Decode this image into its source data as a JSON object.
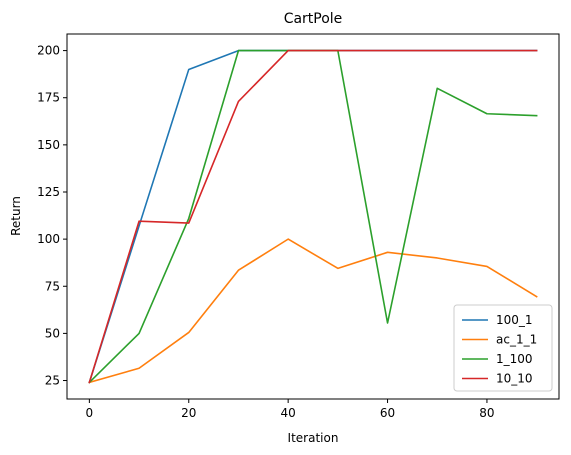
{
  "chart_data": {
    "type": "line",
    "title": "CartPole",
    "xlabel": "Iteration",
    "ylabel": "Return",
    "xlim": [
      -4.5,
      94.5
    ],
    "ylim": [
      15.2,
      208.8
    ],
    "xticks": [
      0,
      20,
      40,
      60,
      80
    ],
    "yticks": [
      25,
      50,
      75,
      100,
      125,
      150,
      175,
      200
    ],
    "x": [
      0,
      10,
      20,
      30,
      40,
      50,
      60,
      70,
      80,
      90
    ],
    "grid": false,
    "legend_position": "lower-right",
    "series": [
      {
        "name": "100_1",
        "color": "#1f77b4",
        "values": [
          24,
          107,
          190,
          200,
          200,
          200,
          200,
          200,
          200,
          200
        ]
      },
      {
        "name": "ac_1_1",
        "color": "#ff7f0e",
        "values": [
          24,
          31.5,
          50.5,
          83.5,
          100,
          84.5,
          93,
          90,
          85.5,
          69.5
        ]
      },
      {
        "name": "1_100",
        "color": "#2ca02c",
        "values": [
          24,
          50,
          111,
          200,
          200,
          200,
          55.5,
          180,
          166.5,
          165.5
        ]
      },
      {
        "name": "10_10",
        "color": "#d62728",
        "values": [
          24,
          109.5,
          108.5,
          173,
          200,
          200,
          200,
          200,
          200,
          200
        ]
      }
    ]
  }
}
